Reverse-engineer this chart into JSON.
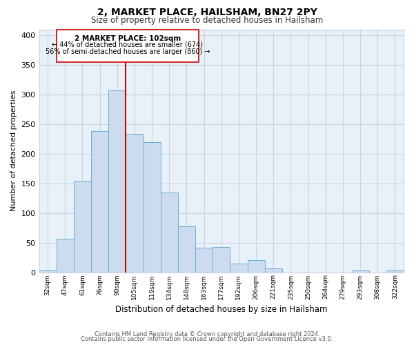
{
  "title1": "2, MARKET PLACE, HAILSHAM, BN27 2PY",
  "title2": "Size of property relative to detached houses in Hailsham",
  "xlabel": "Distribution of detached houses by size in Hailsham",
  "ylabel": "Number of detached properties",
  "bar_labels": [
    "32sqm",
    "47sqm",
    "61sqm",
    "76sqm",
    "90sqm",
    "105sqm",
    "119sqm",
    "134sqm",
    "148sqm",
    "163sqm",
    "177sqm",
    "192sqm",
    "206sqm",
    "221sqm",
    "235sqm",
    "250sqm",
    "264sqm",
    "279sqm",
    "293sqm",
    "308sqm",
    "322sqm"
  ],
  "bar_values": [
    3,
    57,
    154,
    238,
    307,
    233,
    220,
    134,
    78,
    41,
    42,
    14,
    20,
    6,
    0,
    0,
    0,
    0,
    3,
    0,
    3
  ],
  "bar_color": "#ccdcee",
  "bar_edge_color": "#6baed6",
  "red_line_index": 5,
  "marker_label": "2 MARKET PLACE: 102sqm",
  "marker_line_color": "#cc0000",
  "annotation_line1": "← 44% of detached houses are smaller (674)",
  "annotation_line2": "56% of semi-detached houses are larger (860) →",
  "ylim": [
    0,
    410
  ],
  "yticks": [
    0,
    50,
    100,
    150,
    200,
    250,
    300,
    350,
    400
  ],
  "footer1": "Contains HM Land Registry data © Crown copyright and database right 2024.",
  "footer2": "Contains public sector information licensed under the Open Government Licence v3.0.",
  "bg_color": "#ffffff",
  "plot_bg_color": "#e8f0f8",
  "grid_color": "#c8d4e4"
}
